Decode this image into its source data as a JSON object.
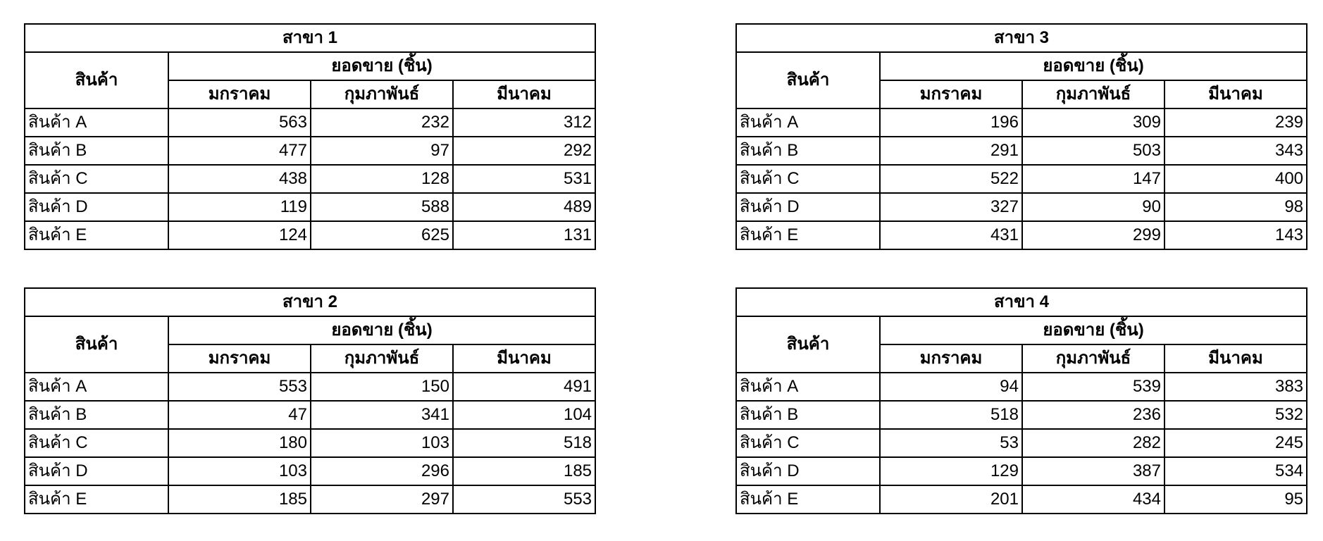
{
  "tables": [
    {
      "title": "สาขา 1",
      "product_header": "สินค้า",
      "sales_header": "ยอดขาย (ชิ้น)",
      "months": [
        "มกราคม",
        "กุมภาพันธ์",
        "มีนาคม"
      ],
      "rows": [
        {
          "product": "สินค้า A",
          "values": [
            "563",
            "232",
            "312"
          ]
        },
        {
          "product": "สินค้า B",
          "values": [
            "477",
            "97",
            "292"
          ]
        },
        {
          "product": "สินค้า C",
          "values": [
            "438",
            "128",
            "531"
          ]
        },
        {
          "product": "สินค้า D",
          "values": [
            "119",
            "588",
            "489"
          ]
        },
        {
          "product": "สินค้า E",
          "values": [
            "124",
            "625",
            "131"
          ]
        }
      ]
    },
    {
      "title": "สาขา 3",
      "product_header": "สินค้า",
      "sales_header": "ยอดขาย (ชิ้น)",
      "months": [
        "มกราคม",
        "กุมภาพันธ์",
        "มีนาคม"
      ],
      "rows": [
        {
          "product": "สินค้า A",
          "values": [
            "196",
            "309",
            "239"
          ]
        },
        {
          "product": "สินค้า B",
          "values": [
            "291",
            "503",
            "343"
          ]
        },
        {
          "product": "สินค้า C",
          "values": [
            "522",
            "147",
            "400"
          ]
        },
        {
          "product": "สินค้า D",
          "values": [
            "327",
            "90",
            "98"
          ]
        },
        {
          "product": "สินค้า E",
          "values": [
            "431",
            "299",
            "143"
          ]
        }
      ]
    },
    {
      "title": "สาขา 2",
      "product_header": "สินค้า",
      "sales_header": "ยอดขาย (ชิ้น)",
      "months": [
        "มกราคม",
        "กุมภาพันธ์",
        "มีนาคม"
      ],
      "rows": [
        {
          "product": "สินค้า A",
          "values": [
            "553",
            "150",
            "491"
          ]
        },
        {
          "product": "สินค้า B",
          "values": [
            "47",
            "341",
            "104"
          ]
        },
        {
          "product": "สินค้า C",
          "values": [
            "180",
            "103",
            "518"
          ]
        },
        {
          "product": "สินค้า D",
          "values": [
            "103",
            "296",
            "185"
          ]
        },
        {
          "product": "สินค้า E",
          "values": [
            "185",
            "297",
            "553"
          ]
        }
      ]
    },
    {
      "title": "สาขา 4",
      "product_header": "สินค้า",
      "sales_header": "ยอดขาย (ชิ้น)",
      "months": [
        "มกราคม",
        "กุมภาพันธ์",
        "มีนาคม"
      ],
      "rows": [
        {
          "product": "สินค้า A",
          "values": [
            "94",
            "539",
            "383"
          ]
        },
        {
          "product": "สินค้า B",
          "values": [
            "518",
            "236",
            "532"
          ]
        },
        {
          "product": "สินค้า C",
          "values": [
            "53",
            "282",
            "245"
          ]
        },
        {
          "product": "สินค้า D",
          "values": [
            "129",
            "387",
            "534"
          ]
        },
        {
          "product": "สินค้า E",
          "values": [
            "201",
            "434",
            "95"
          ]
        }
      ]
    }
  ]
}
